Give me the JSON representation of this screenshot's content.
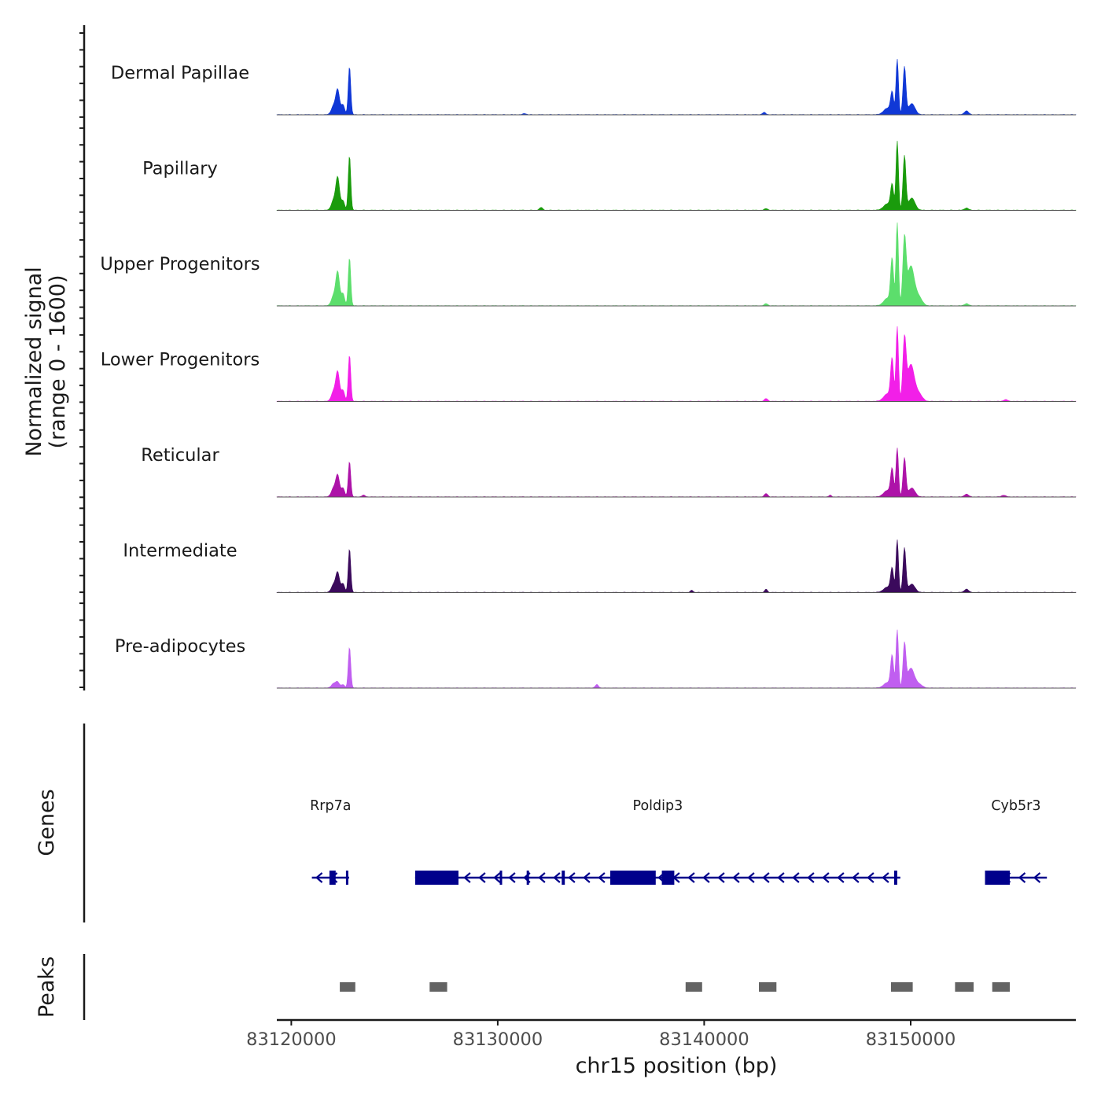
{
  "chart_data": {
    "type": "area",
    "title": "",
    "ylabel_line1": "Normalized signal",
    "ylabel_line2": "(range 0 - 1600)",
    "ylim": [
      0,
      1600
    ],
    "xlabel": "chr15 position (bp)",
    "xlim": [
      83119300,
      83158000
    ],
    "x_ticks": [
      83120000,
      83130000,
      83140000,
      83150000
    ],
    "x_tick_labels": [
      "83120000",
      "83130000",
      "83140000",
      "83150000"
    ],
    "series": [
      {
        "name": "Dermal Papillae",
        "color": "#1038d6",
        "peaks": [
          [
            83122050,
            0.16,
            110
          ],
          [
            83122250,
            0.44,
            90
          ],
          [
            83122500,
            0.18,
            80
          ],
          [
            83122820,
            0.88,
            60
          ],
          [
            83131300,
            0.02,
            80
          ],
          [
            83142900,
            0.04,
            80
          ],
          [
            83148900,
            0.12,
            200
          ],
          [
            83149100,
            0.36,
            70
          ],
          [
            83149350,
            1.0,
            60
          ],
          [
            83149700,
            0.86,
            70
          ],
          [
            83150050,
            0.2,
            160
          ],
          [
            83152700,
            0.07,
            100
          ]
        ]
      },
      {
        "name": "Papillary",
        "color": "#1a9b0c",
        "peaks": [
          [
            83122050,
            0.18,
            110
          ],
          [
            83122250,
            0.58,
            90
          ],
          [
            83122500,
            0.17,
            80
          ],
          [
            83122820,
            1.0,
            60
          ],
          [
            83132100,
            0.05,
            80
          ],
          [
            83143000,
            0.03,
            80
          ],
          [
            83148900,
            0.12,
            200
          ],
          [
            83149100,
            0.42,
            70
          ],
          [
            83149350,
            1.25,
            60
          ],
          [
            83149700,
            0.98,
            70
          ],
          [
            83150050,
            0.22,
            160
          ],
          [
            83152700,
            0.04,
            100
          ]
        ]
      },
      {
        "name": "Upper Progenitors",
        "color": "#5cde6c",
        "peaks": [
          [
            83122050,
            0.18,
            110
          ],
          [
            83122250,
            0.6,
            90
          ],
          [
            83122500,
            0.22,
            80
          ],
          [
            83122820,
            0.88,
            60
          ],
          [
            83143000,
            0.04,
            80
          ],
          [
            83148900,
            0.14,
            200
          ],
          [
            83149100,
            0.8,
            70
          ],
          [
            83149350,
            1.5,
            60
          ],
          [
            83149700,
            1.18,
            80
          ],
          [
            83150000,
            0.7,
            160
          ],
          [
            83150350,
            0.18,
            180
          ],
          [
            83152700,
            0.04,
            100
          ]
        ]
      },
      {
        "name": "Lower Progenitors",
        "color": "#f21fe8",
        "peaks": [
          [
            83122050,
            0.18,
            110
          ],
          [
            83122250,
            0.52,
            90
          ],
          [
            83122500,
            0.2,
            80
          ],
          [
            83122820,
            0.85,
            60
          ],
          [
            83143000,
            0.05,
            80
          ],
          [
            83148900,
            0.14,
            200
          ],
          [
            83149100,
            0.72,
            70
          ],
          [
            83149350,
            1.35,
            60
          ],
          [
            83149700,
            1.1,
            80
          ],
          [
            83150000,
            0.65,
            160
          ],
          [
            83150350,
            0.16,
            180
          ],
          [
            83154600,
            0.03,
            100
          ]
        ]
      },
      {
        "name": "Reticular",
        "color": "#ad13a8",
        "peaks": [
          [
            83122050,
            0.16,
            110
          ],
          [
            83122250,
            0.38,
            90
          ],
          [
            83122500,
            0.16,
            80
          ],
          [
            83122820,
            0.65,
            60
          ],
          [
            83123500,
            0.03,
            80
          ],
          [
            83143000,
            0.06,
            80
          ],
          [
            83146100,
            0.03,
            60
          ],
          [
            83148900,
            0.12,
            200
          ],
          [
            83149100,
            0.46,
            70
          ],
          [
            83149350,
            0.88,
            60
          ],
          [
            83149700,
            0.7,
            70
          ],
          [
            83150050,
            0.16,
            160
          ],
          [
            83152700,
            0.05,
            100
          ],
          [
            83154500,
            0.03,
            100
          ]
        ]
      },
      {
        "name": "Intermediate",
        "color": "#3b0a5c",
        "peaks": [
          [
            83122050,
            0.14,
            110
          ],
          [
            83122250,
            0.35,
            90
          ],
          [
            83122500,
            0.16,
            80
          ],
          [
            83122820,
            0.8,
            60
          ],
          [
            83139400,
            0.04,
            60
          ],
          [
            83143000,
            0.06,
            60
          ],
          [
            83148900,
            0.1,
            200
          ],
          [
            83149100,
            0.4,
            70
          ],
          [
            83149350,
            0.95,
            60
          ],
          [
            83149700,
            0.8,
            70
          ],
          [
            83150050,
            0.15,
            160
          ],
          [
            83152700,
            0.06,
            100
          ]
        ]
      },
      {
        "name": "Pre-adipocytes",
        "color": "#c05ef0",
        "peaks": [
          [
            83122050,
            0.08,
            110
          ],
          [
            83122250,
            0.1,
            90
          ],
          [
            83122500,
            0.06,
            80
          ],
          [
            83122820,
            0.75,
            60
          ],
          [
            83134800,
            0.06,
            80
          ],
          [
            83148900,
            0.1,
            200
          ],
          [
            83149100,
            0.55,
            70
          ],
          [
            83149350,
            1.05,
            60
          ],
          [
            83149700,
            0.78,
            70
          ],
          [
            83150000,
            0.35,
            160
          ],
          [
            83150350,
            0.08,
            180
          ]
        ]
      }
    ],
    "genes_track_label": "Genes",
    "genes": [
      {
        "name": "Rrp7a",
        "start": 83121000,
        "end": 83122800,
        "strand": "-",
        "exons": [
          [
            83121850,
            83122150
          ],
          [
            83122650,
            83122750
          ]
        ]
      },
      {
        "name": "Poldip3",
        "start": 83126000,
        "end": 83149500,
        "strand": "-",
        "exons": [
          [
            83126000,
            83128100
          ],
          [
            83130100,
            83130200
          ],
          [
            83131400,
            83131500
          ],
          [
            83133100,
            83133250
          ],
          [
            83135450,
            83137650
          ],
          [
            83137950,
            83138550
          ],
          [
            83149200,
            83149350
          ]
        ]
      },
      {
        "name": "Cyb5r3",
        "start": 83153600,
        "end": 83156600,
        "strand": "-",
        "exons": [
          [
            83153600,
            83154800
          ]
        ]
      }
    ],
    "peaks_track_label": "Peaks",
    "peaks": [
      [
        83122350,
        83123100
      ],
      [
        83126700,
        83127550
      ],
      [
        83139100,
        83139900
      ],
      [
        83142650,
        83143500
      ],
      [
        83149050,
        83150100
      ],
      [
        83152150,
        83153050
      ],
      [
        83153950,
        83154800
      ]
    ]
  }
}
